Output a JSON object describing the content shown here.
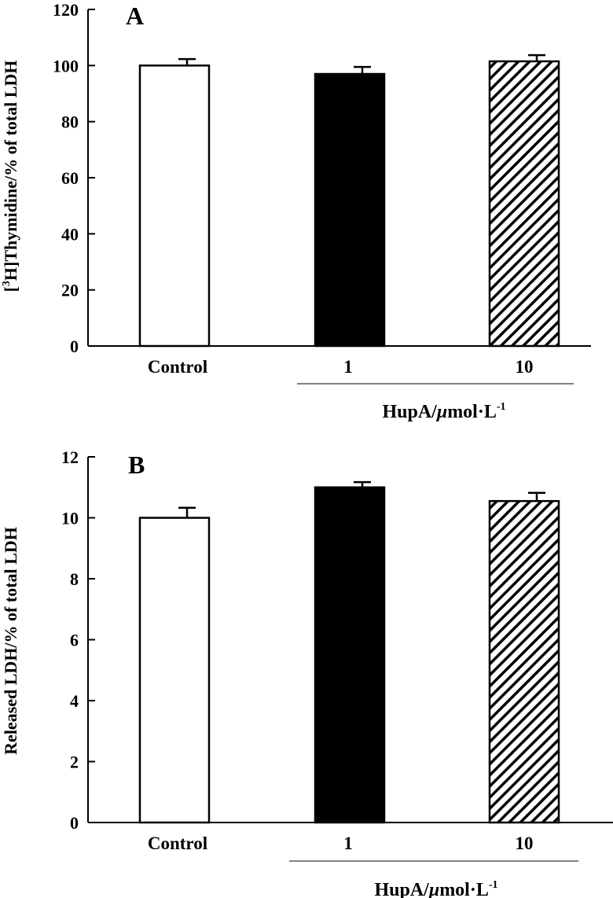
{
  "chart_data": [
    {
      "type": "bar",
      "panel_label": "A",
      "ylabel": "[³H]Thymidine/% of total LDH",
      "ylabel_parts": {
        "pre": "[",
        "sup": "3",
        "post": "H]Thymidine/% of total LDH"
      },
      "xlabel": "HupA/µmol·L⁻¹",
      "xlabel_parts": {
        "base": "HupA/",
        "mu": "μ",
        "rest": "mol·L",
        "sup": "-1"
      },
      "categories": [
        "Control",
        "1",
        "10"
      ],
      "values": [
        100,
        97,
        101.5
      ],
      "errors": [
        2.3,
        2.5,
        2.2
      ],
      "bar_styles": [
        "white",
        "black",
        "hatched"
      ],
      "ylim": [
        0,
        120
      ],
      "yticks": [
        "0",
        "20",
        "40",
        "60",
        "80",
        "100",
        "120"
      ],
      "grid": false
    },
    {
      "type": "bar",
      "panel_label": "B",
      "ylabel": "Released LDH/% of total LDH",
      "xlabel": "HupA/µmol·L⁻¹",
      "xlabel_parts": {
        "base": "HupA/",
        "mu": "μ",
        "rest": "mol·L",
        "sup": "-1"
      },
      "categories": [
        "Control",
        "1",
        "10"
      ],
      "values": [
        10,
        11,
        10.55
      ],
      "errors": [
        0.33,
        0.17,
        0.27
      ],
      "bar_styles": [
        "white",
        "black",
        "hatched"
      ],
      "ylim": [
        0,
        12
      ],
      "yticks": [
        "0",
        "2",
        "4",
        "6",
        "8",
        "10",
        "12"
      ],
      "grid": false
    }
  ]
}
